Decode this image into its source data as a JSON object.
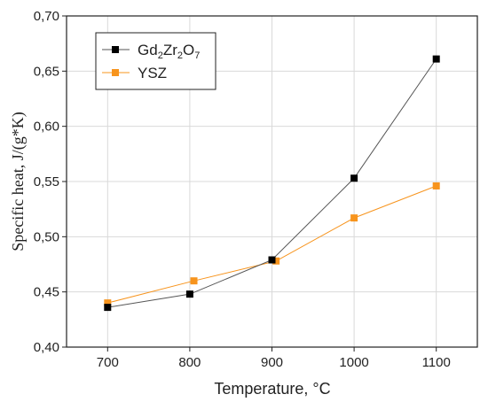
{
  "chart_data": {
    "type": "line",
    "xlabel": "Temperature, °C",
    "ylabel": "Specific heat, J/(g*K)",
    "xlim": [
      650,
      1150
    ],
    "ylim": [
      0.4,
      0.7
    ],
    "x_ticks": [
      700,
      800,
      900,
      1000,
      1100
    ],
    "x_tick_labels": [
      "700",
      "800",
      "900",
      "1000",
      "1100"
    ],
    "y_ticks": [
      0.4,
      0.45,
      0.5,
      0.55,
      0.6,
      0.65,
      0.7
    ],
    "y_tick_labels": [
      "0,40",
      "0,45",
      "0,50",
      "0,55",
      "0,60",
      "0,65",
      "0,70"
    ],
    "grid": true,
    "legend_position": "top-left",
    "series": [
      {
        "name": "Gd2Zr2O7",
        "name_parts": {
          "a": "Gd",
          "sub_a": "2",
          "b": "Zr",
          "sub_b": "2",
          "c": "O",
          "sub_c": "7"
        },
        "color": "#000000",
        "marker": "square",
        "x": [
          700,
          800,
          900,
          1000,
          1100
        ],
        "y": [
          0.436,
          0.448,
          0.479,
          0.553,
          0.661
        ]
      },
      {
        "name": "YSZ",
        "color": "#f7941d",
        "marker": "square",
        "x": [
          700,
          805,
          905,
          1000,
          1100
        ],
        "y": [
          0.44,
          0.46,
          0.478,
          0.517,
          0.546
        ]
      }
    ]
  }
}
